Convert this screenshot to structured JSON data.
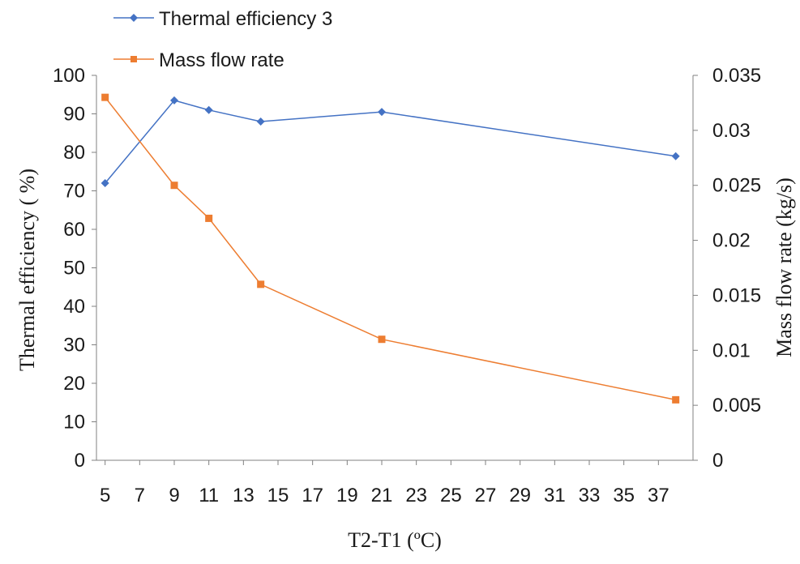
{
  "chart_data": {
    "type": "line",
    "xlabel": "T2-T1 (ºC)",
    "ylabel_left": "Thermal  efficiency ( %)",
    "ylabel_right": "Mass flow rate (kg/s)",
    "x_ticks": [
      "5",
      "7",
      "9",
      "11",
      "13",
      "15",
      "17",
      "19",
      "21",
      "23",
      "25",
      "27",
      "29",
      "31",
      "33",
      "35",
      "37"
    ],
    "xlim": [
      4.5,
      39
    ],
    "y_left": {
      "range": [
        0,
        100
      ],
      "ticks": [
        "0",
        "10",
        "20",
        "30",
        "40",
        "50",
        "60",
        "70",
        "80",
        "90",
        "100"
      ]
    },
    "y_right": {
      "range": [
        0,
        0.035
      ],
      "ticks": [
        "0",
        "0.005",
        "0.01",
        "0.015",
        "0.02",
        "0.025",
        "0.03",
        "0.035"
      ]
    },
    "series": [
      {
        "name": "Thermal efficiency 3",
        "axis": "left",
        "color": "#4472C4",
        "marker": "diamond",
        "x": [
          5,
          9,
          11,
          14,
          21,
          38
        ],
        "values": [
          72,
          93.5,
          91,
          88,
          90.5,
          79
        ]
      },
      {
        "name": "Mass flow rate",
        "axis": "right",
        "color": "#ED7D31",
        "marker": "square",
        "x": [
          5,
          9,
          11,
          14,
          21,
          38
        ],
        "values": [
          0.033,
          0.025,
          0.022,
          0.016,
          0.011,
          0.0055
        ]
      }
    ],
    "legend": "top-left",
    "grid": false
  }
}
